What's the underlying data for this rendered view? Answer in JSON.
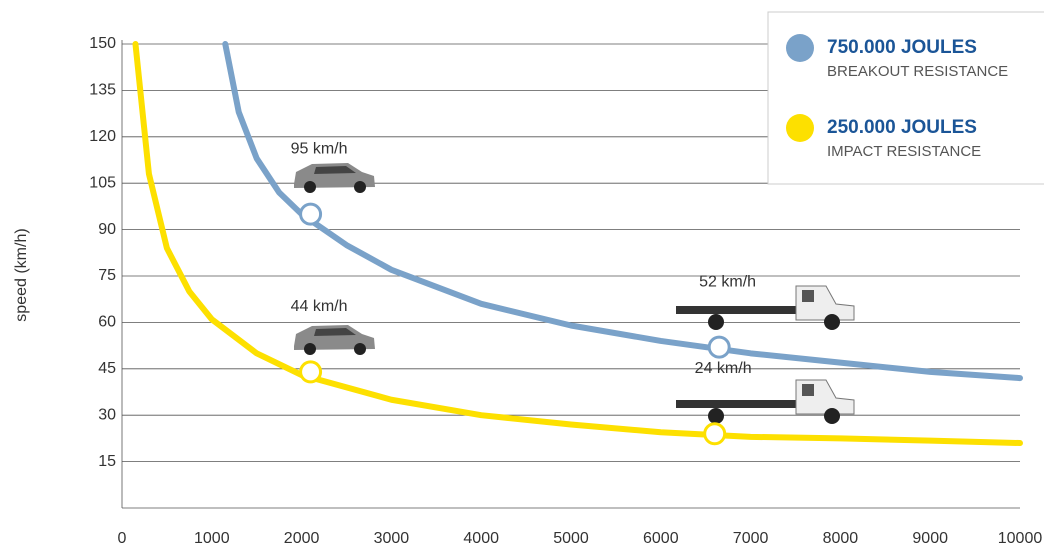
{
  "chart_data": {
    "type": "line",
    "y_label": "speed (km/h)",
    "xlim": [
      0,
      10000
    ],
    "xticks": [
      0,
      1000,
      2000,
      3000,
      4000,
      5000,
      6000,
      7000,
      8000,
      9000,
      10000
    ],
    "ylim": [
      0,
      150
    ],
    "yticks": [
      15,
      30,
      45,
      60,
      75,
      90,
      105,
      120,
      135,
      150
    ],
    "grid": true,
    "legend": "top-right",
    "series": [
      {
        "name": "750.000 JOULES",
        "description": "BREAKOUT RESISTANCE",
        "color": "#7aa2c9",
        "x": [
          1150,
          1300,
          1500,
          1750,
          2000,
          2500,
          3000,
          4000,
          5000,
          6000,
          7000,
          8000,
          9000,
          10000
        ],
        "values": [
          150,
          128,
          113,
          102,
          95,
          85,
          77,
          66,
          59,
          54,
          50,
          47,
          44,
          42
        ],
        "markers": {
          "x": [
            2100,
            6650
          ],
          "values": [
            95,
            52
          ],
          "value_labels": [
            "95 km/h",
            "52 km/h"
          ]
        }
      },
      {
        "name": "250.000 JOULES",
        "description": "IMPACT RESISTANCE",
        "color": "#fde000",
        "x": [
          150,
          300,
          500,
          750,
          1000,
          1500,
          2000,
          3000,
          4000,
          5000,
          6000,
          7000,
          8000,
          9000,
          10000
        ],
        "values": [
          150,
          108,
          84,
          70,
          61,
          50,
          43,
          35,
          30,
          27,
          24.5,
          23,
          22.5,
          21.8,
          21
        ],
        "markers": {
          "x": [
            2100,
            6600
          ],
          "values": [
            44,
            24
          ],
          "value_labels": [
            "44 km/h",
            "24 km/h"
          ]
        }
      }
    ]
  }
}
